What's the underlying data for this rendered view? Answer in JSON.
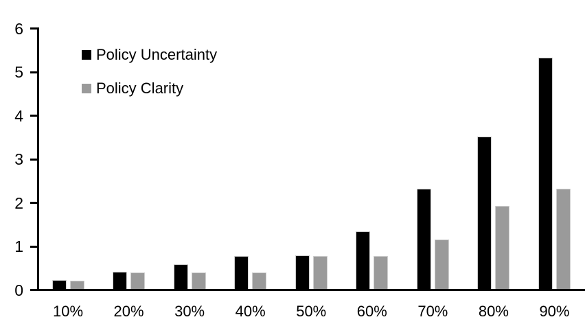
{
  "chart_data": {
    "type": "bar",
    "title": "",
    "categories": [
      "10%",
      "20%",
      "30%",
      "40%",
      "50%",
      "60%",
      "70%",
      "80%",
      "90%"
    ],
    "series": [
      {
        "name": "Policy Uncertainty",
        "color": "#000000",
        "values": [
          0.2,
          0.4,
          0.57,
          0.76,
          0.77,
          1.33,
          2.3,
          3.5,
          5.3
        ]
      },
      {
        "name": "Policy Clarity",
        "color": "#9a9a9a",
        "values": [
          0.19,
          0.38,
          0.38,
          0.38,
          0.76,
          0.76,
          1.14,
          1.9,
          2.3
        ]
      }
    ],
    "xlabel": "",
    "ylabel": "",
    "ylim": [
      0,
      6
    ],
    "yticks": [
      0,
      1,
      2,
      3,
      4,
      5,
      6
    ],
    "grid": false,
    "legend_position": "upper-left-inside",
    "axis_color": "#000000"
  }
}
